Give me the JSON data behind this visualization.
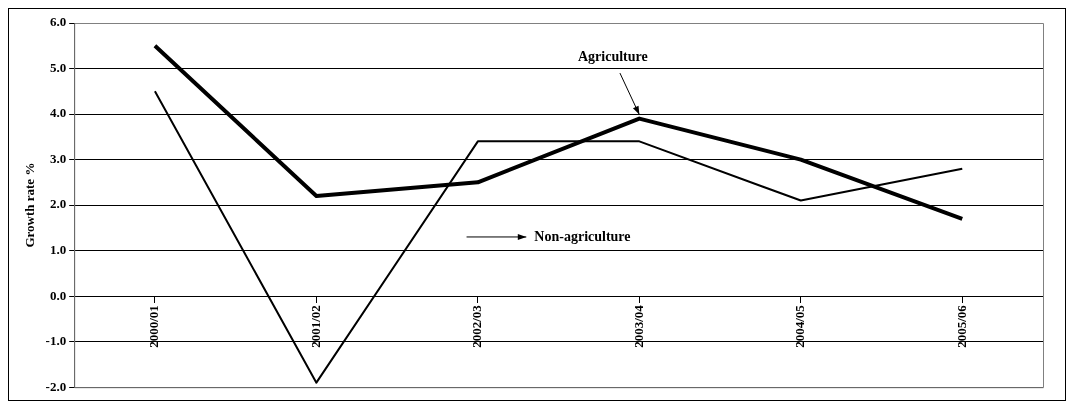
{
  "chart_data": {
    "type": "line",
    "ylabel": "Growth rate %",
    "categories": [
      "2000/01",
      "2001/02",
      "2002/03",
      "2003/04",
      "2004/05",
      "2005/06"
    ],
    "series": [
      {
        "color": "#000000",
        "values": [
          5.5,
          2.2,
          2.5,
          3.9,
          3.0,
          1.7
        ]
      },
      {
        "color": "#000000",
        "values": [
          4.5,
          -1.9,
          3.4,
          3.4,
          2.1,
          2.8
        ]
      }
    ],
    "annotations": [
      {
        "text": "Agriculture",
        "x": "2003/04",
        "y": 3.9
      },
      "Non-agriculture"
    ],
    "ylim": [
      -2,
      6
    ],
    "yticks": [
      {
        "value": -2,
        "label": "-2.0"
      },
      {
        "value": -1,
        "label": "-1.0"
      },
      {
        "value": 0,
        "label": "0.0"
      },
      {
        "value": 1,
        "label": "1.0"
      },
      {
        "value": 2,
        "label": "2.0"
      },
      {
        "value": 3,
        "label": "3.0"
      },
      {
        "value": 4,
        "label": "4.0"
      },
      {
        "value": 5,
        "label": "5.0"
      },
      {
        "value": 6,
        "label": "6.0"
      }
    ],
    "grid": "y",
    "legend": false,
    "marker": "none",
    "line_style": "solid"
  }
}
